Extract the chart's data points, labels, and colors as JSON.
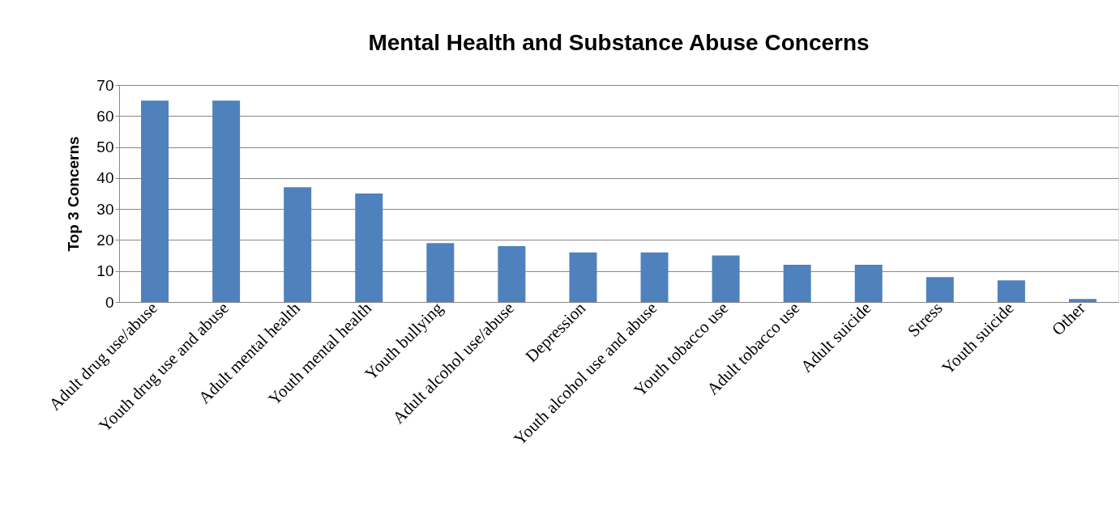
{
  "chart_data": {
    "type": "bar",
    "title": "Mental Health and Substance Abuse Concerns",
    "ylabel": "Top 3 Concerns",
    "categories": [
      "Adult drug use/abuse",
      "Youth drug use and abuse",
      "Adult mental health",
      "Youth mental health",
      "Youth bullying",
      "Adult alcohol use/abuse",
      "Depression",
      "Youth alcohol use and abuse",
      "Youth tobacco use",
      "Adult tobacco use",
      "Adult suicide",
      "Stress",
      "Youth suicide",
      "Other"
    ],
    "values": [
      65,
      65,
      37,
      35,
      19,
      18,
      16,
      16,
      15,
      12,
      12,
      8,
      7,
      1
    ],
    "color": "#4f81bd",
    "ylim": [
      0,
      70
    ],
    "yticks": [
      0,
      10,
      20,
      30,
      40,
      50,
      60,
      70
    ],
    "grid": "y"
  }
}
